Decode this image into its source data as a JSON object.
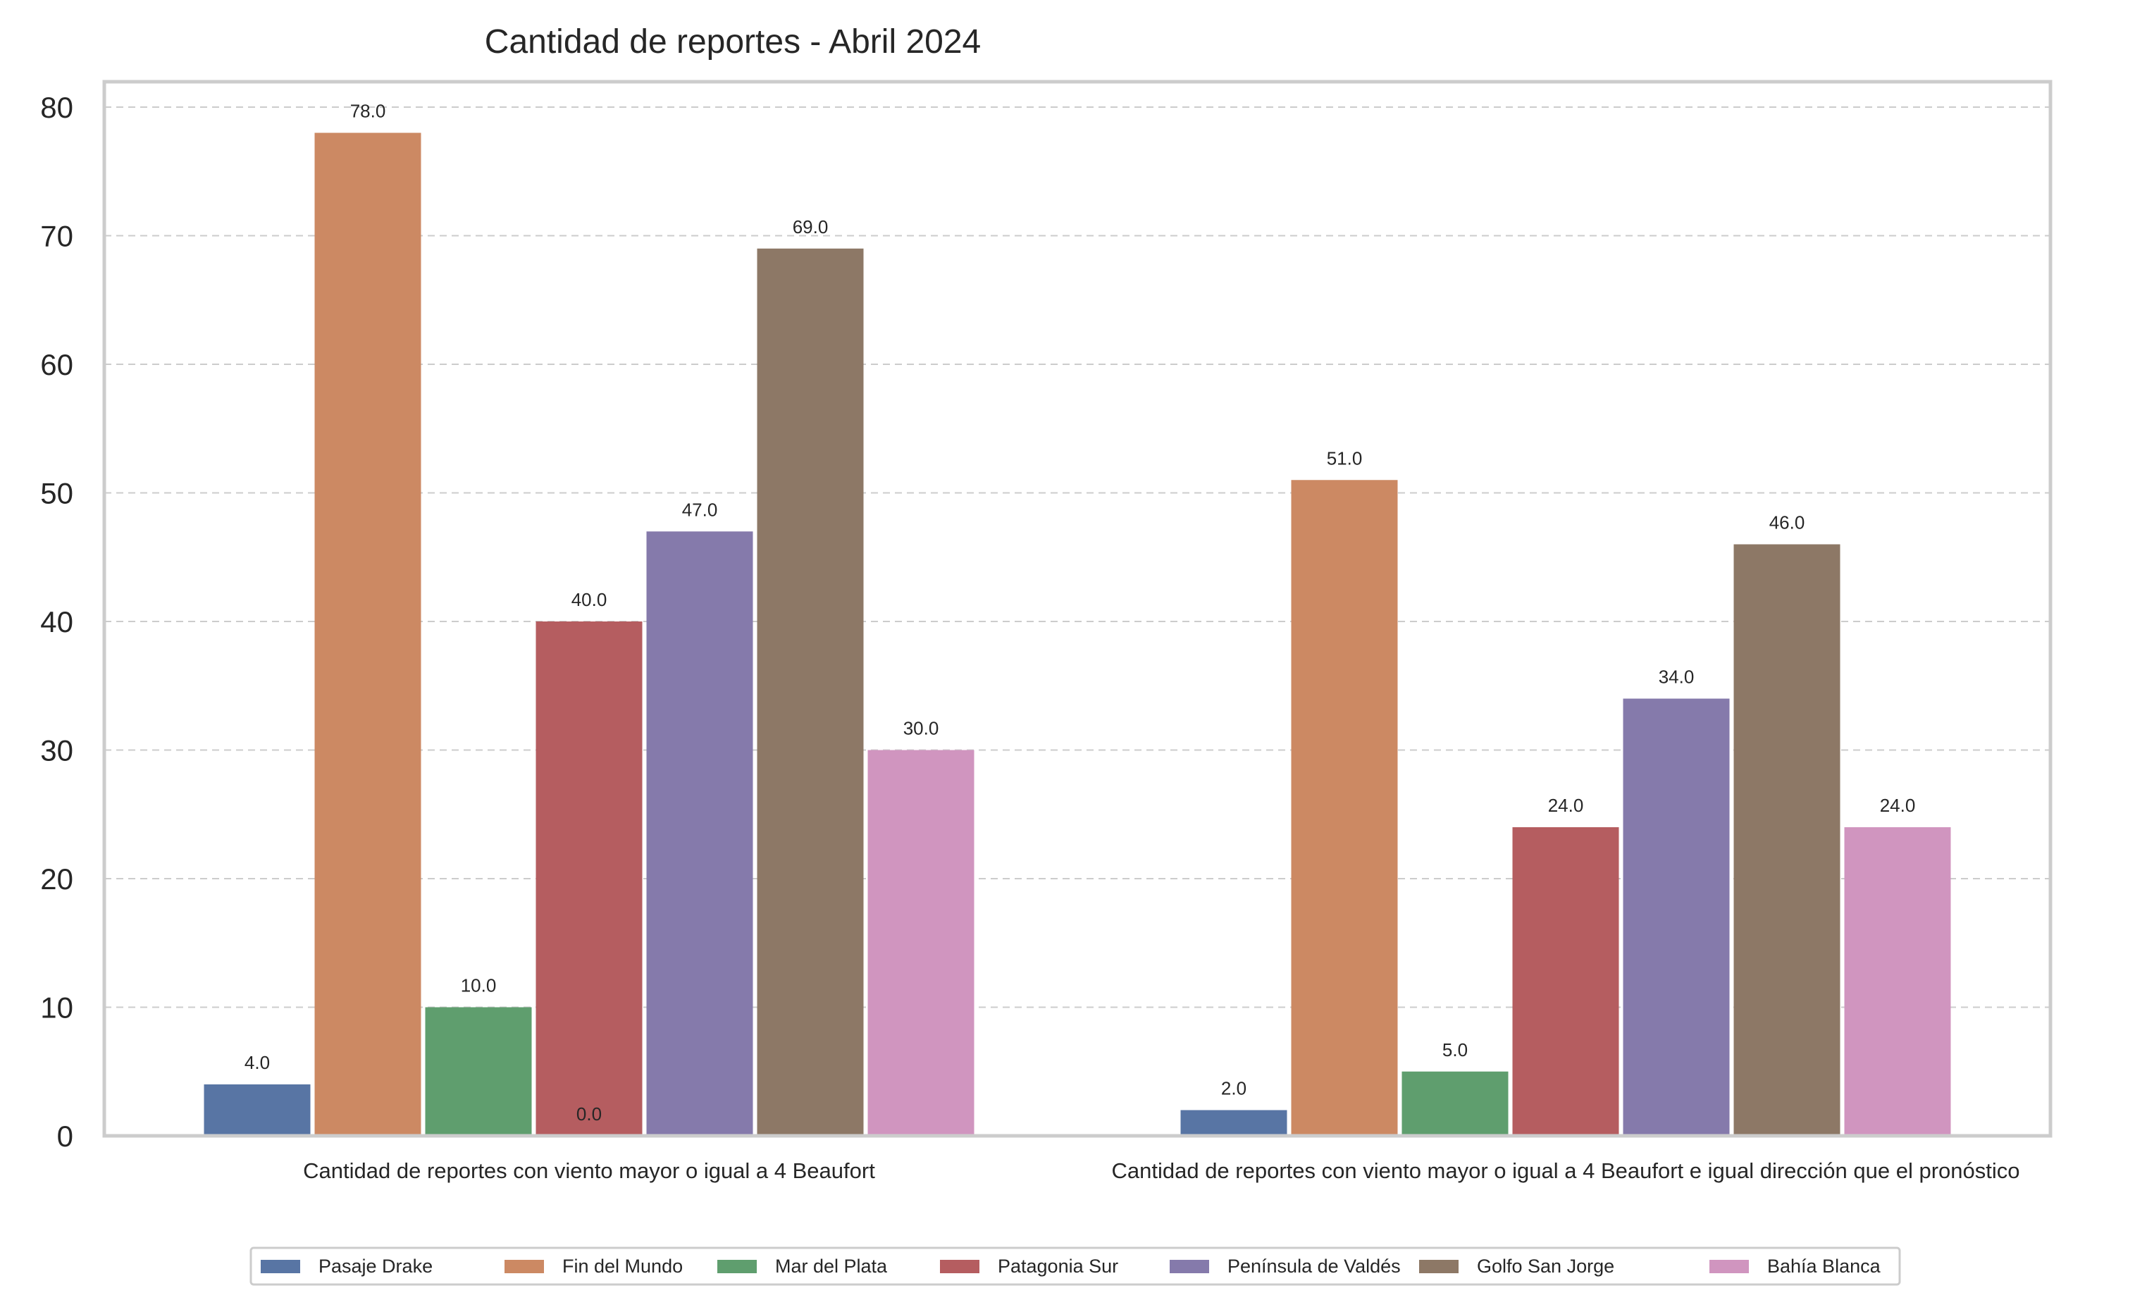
{
  "chart_data": {
    "type": "bar",
    "title": "Cantidad de reportes - Abril 2024",
    "xlabel": "",
    "ylabel": "",
    "ylim": [
      0,
      82
    ],
    "yticks": [
      0,
      10,
      20,
      30,
      40,
      50,
      60,
      70,
      80
    ],
    "grid": "y-dashed",
    "legend_position": "bottom",
    "categories": [
      "Cantidad de reportes con viento mayor o igual a 4 Beaufort",
      "Cantidad de reportes con viento mayor o igual a 4 Beaufort e igual dirección que el pronóstico"
    ],
    "series": [
      {
        "name": "Pasaje Drake",
        "color": "#5875a4",
        "values": [
          4,
          2
        ],
        "labels": [
          "4.0",
          "2.0"
        ]
      },
      {
        "name": "Fin del Mundo",
        "color": "#cc8963",
        "values": [
          78,
          51
        ],
        "labels": [
          "78.0",
          "51.0"
        ]
      },
      {
        "name": "Mar del Plata",
        "color": "#5f9e6e",
        "values": [
          10,
          5
        ],
        "labels": [
          "10.0",
          "5.0"
        ]
      },
      {
        "name": "Patagonia Sur",
        "color": "#b55d60",
        "values": [
          40,
          24
        ],
        "labels": [
          "40.0",
          "24.0"
        ]
      },
      {
        "name": "Península de Valdés",
        "color": "#857aab",
        "values": [
          47,
          34
        ],
        "labels": [
          "47.0",
          "34.0"
        ]
      },
      {
        "name": "Golfo San Jorge",
        "color": "#8d7866",
        "values": [
          69,
          46
        ],
        "labels": [
          "69.0",
          "46.0"
        ]
      },
      {
        "name": "Bahía Blanca",
        "color": "#d095bf",
        "values": [
          30,
          24
        ],
        "labels": [
          "30.0",
          "24.0"
        ]
      }
    ],
    "extra_labels": [
      {
        "text": "0.0",
        "category_index": 0,
        "value": 0
      }
    ]
  }
}
